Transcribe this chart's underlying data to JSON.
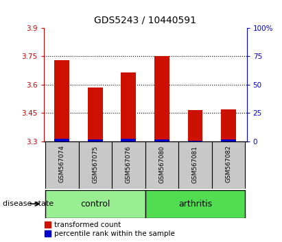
{
  "title": "GDS5243 / 10440591",
  "samples": [
    "GSM567074",
    "GSM567075",
    "GSM567076",
    "GSM567080",
    "GSM567081",
    "GSM567082"
  ],
  "groups": [
    "control",
    "control",
    "control",
    "arthritis",
    "arthritis",
    "arthritis"
  ],
  "red_values": [
    3.73,
    3.585,
    3.665,
    3.75,
    3.465,
    3.47
  ],
  "blue_values": [
    3.315,
    3.31,
    3.315,
    3.31,
    3.305,
    3.31
  ],
  "bar_bottom": 3.3,
  "ylim_left": [
    3.3,
    3.9
  ],
  "ylim_right": [
    0,
    100
  ],
  "yticks_left": [
    3.3,
    3.45,
    3.6,
    3.75,
    3.9
  ],
  "yticks_right": [
    0,
    25,
    50,
    75,
    100
  ],
  "ytick_labels_left": [
    "3.3",
    "3.45",
    "3.6",
    "3.75",
    "3.9"
  ],
  "ytick_labels_right": [
    "0",
    "25",
    "50",
    "75",
    "100%"
  ],
  "gridlines": [
    3.45,
    3.6,
    3.75
  ],
  "control_color": "#98EE90",
  "arthritis_color": "#50DD50",
  "bar_red_color": "#CC1100",
  "bar_blue_color": "#0000CC",
  "sample_bg_color": "#C8C8C8",
  "plot_bg_color": "#FFFFFF",
  "left_tick_color": "#CC0000",
  "right_tick_color": "#0000CC",
  "bar_width": 0.45,
  "group_label": "disease state",
  "legend_red": "transformed count",
  "legend_blue": "percentile rank within the sample"
}
